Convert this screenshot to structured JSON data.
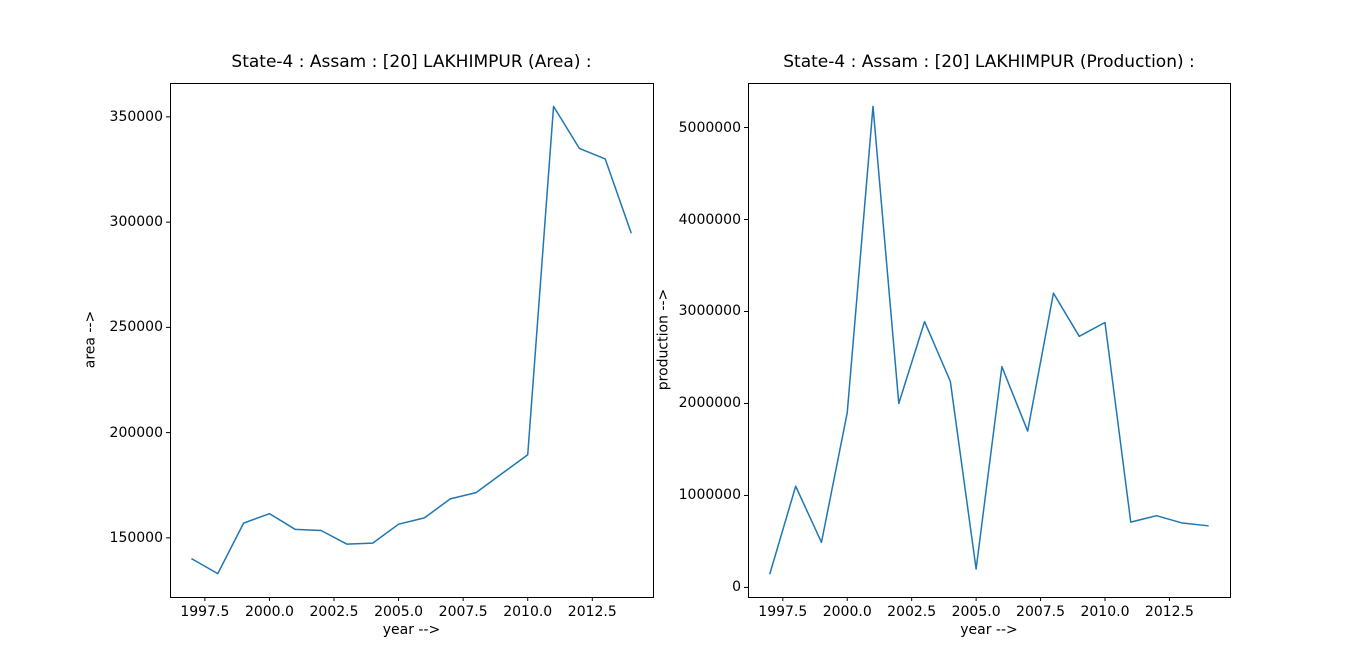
{
  "figure": {
    "background_color": "#ffffff",
    "text_color": "#000000",
    "line_color": "#1f77b4",
    "spine_color": "#000000"
  },
  "chart_data": [
    {
      "type": "line",
      "title": "State-4 : Assam : [20] LAKHIMPUR (Area) :",
      "xlabel": "year -->",
      "ylabel": "area -->",
      "grid": false,
      "legend": "none",
      "x": [
        1997,
        1998,
        1999,
        2000,
        2001,
        2002,
        2003,
        2004,
        2005,
        2006,
        2007,
        2008,
        2009,
        2010,
        2011,
        2012,
        2013,
        2014
      ],
      "series": [
        {
          "name": "area",
          "values": [
            140000,
            133000,
            157000,
            161500,
            154000,
            153500,
            147000,
            147500,
            156500,
            159500,
            168500,
            171500,
            180500,
            189500,
            355000,
            335000,
            330000,
            295000
          ]
        }
      ],
      "xlim": [
        1996.15,
        2014.85
      ],
      "ylim": [
        121900,
        366100
      ],
      "xticks": {
        "values": [
          1997.5,
          2000.0,
          2002.5,
          2005.0,
          2007.5,
          2010.0,
          2012.5
        ],
        "labels": [
          "1997.5",
          "2000.0",
          "2002.5",
          "2005.0",
          "2007.5",
          "2010.0",
          "2012.5"
        ]
      },
      "yticks": {
        "values": [
          150000,
          200000,
          250000,
          300000,
          350000
        ],
        "labels": [
          "150000",
          "200000",
          "250000",
          "300000",
          "350000"
        ]
      }
    },
    {
      "type": "line",
      "title": "State-4 : Assam : [20] LAKHIMPUR (Production) :",
      "xlabel": "year -->",
      "ylabel": "production -->",
      "grid": false,
      "legend": "none",
      "x": [
        1997,
        1998,
        1999,
        2000,
        2001,
        2002,
        2003,
        2004,
        2005,
        2006,
        2007,
        2008,
        2009,
        2010,
        2011,
        2012,
        2013,
        2014
      ],
      "series": [
        {
          "name": "production",
          "values": [
            150000,
            1100000,
            490000,
            1900000,
            5230000,
            2000000,
            2890000,
            2240000,
            200000,
            2400000,
            1700000,
            3200000,
            2730000,
            2880000,
            710000,
            780000,
            700000,
            670000
          ]
        }
      ],
      "xlim": [
        1996.15,
        2014.85
      ],
      "ylim": [
        -104000,
        5484000
      ],
      "xticks": {
        "values": [
          1997.5,
          2000.0,
          2002.5,
          2005.0,
          2007.5,
          2010.0,
          2012.5
        ],
        "labels": [
          "1997.5",
          "2000.0",
          "2002.5",
          "2005.0",
          "2007.5",
          "2010.0",
          "2012.5"
        ]
      },
      "yticks": {
        "values": [
          0,
          1000000,
          2000000,
          3000000,
          4000000,
          5000000
        ],
        "labels": [
          "0",
          "1000000",
          "2000000",
          "3000000",
          "4000000",
          "5000000"
        ]
      }
    }
  ]
}
